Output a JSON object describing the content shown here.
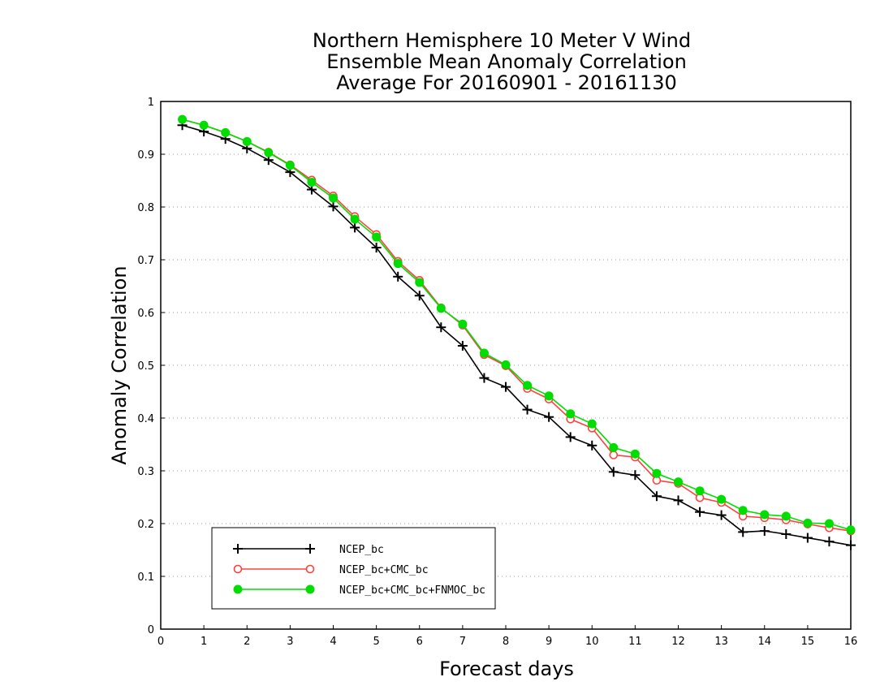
{
  "chart_data": {
    "type": "line",
    "title_lines": [
      "Northern Hemisphere 10 Meter V Wind",
      "Ensemble Mean Anomaly Correlation",
      "Average For 20160901 - 20161130"
    ],
    "xlabel": "Forecast days",
    "ylabel": "Anomaly Correlation",
    "xlim": [
      0,
      16
    ],
    "ylim": [
      0,
      1
    ],
    "xticks": [
      "0",
      "1",
      "2",
      "3",
      "4",
      "5",
      "6",
      "7",
      "8",
      "9",
      "10",
      "11",
      "12",
      "13",
      "14",
      "15",
      "16"
    ],
    "yticks": [
      "0",
      "0.1",
      "0.2",
      "0.3",
      "0.4",
      "0.5",
      "0.6",
      "0.7",
      "0.8",
      "0.9",
      "1"
    ],
    "grid": "horizontal dotted",
    "legend_position": "bottom-left",
    "x": [
      0.5,
      1,
      1.5,
      2,
      2.5,
      3,
      3.5,
      4,
      4.5,
      5,
      5.5,
      6,
      6.5,
      7,
      7.5,
      8,
      8.5,
      9,
      9.5,
      10,
      10.5,
      11,
      11.5,
      12,
      12.5,
      13,
      13.5,
      14,
      14.5,
      15,
      15.5,
      16
    ],
    "series": [
      {
        "name": "NCEP_bc",
        "color": "#000000",
        "marker": "plus",
        "values": [
          0.955,
          0.943,
          0.929,
          0.911,
          0.889,
          0.866,
          0.833,
          0.801,
          0.761,
          0.723,
          0.668,
          0.632,
          0.572,
          0.537,
          0.476,
          0.459,
          0.416,
          0.402,
          0.364,
          0.348,
          0.298,
          0.292,
          0.252,
          0.244,
          0.222,
          0.216,
          0.184,
          0.186,
          0.18,
          0.173,
          0.166,
          0.159
        ]
      },
      {
        "name": "NCEP_bc+CMC_bc",
        "color": "#ff4040",
        "marker": "open-circle",
        "values": [
          0.966,
          0.955,
          0.941,
          0.924,
          0.904,
          0.88,
          0.851,
          0.821,
          0.782,
          0.748,
          0.697,
          0.661,
          0.609,
          0.576,
          0.52,
          0.499,
          0.456,
          0.436,
          0.398,
          0.381,
          0.33,
          0.326,
          0.282,
          0.276,
          0.249,
          0.24,
          0.214,
          0.211,
          0.207,
          0.199,
          0.192,
          0.186
        ]
      },
      {
        "name": "NCEP_bc+CMC_bc+FNMOC_bc",
        "color": "#00dd00",
        "marker": "filled-circle",
        "values": [
          0.966,
          0.955,
          0.941,
          0.924,
          0.903,
          0.879,
          0.847,
          0.817,
          0.777,
          0.743,
          0.693,
          0.657,
          0.608,
          0.578,
          0.523,
          0.501,
          0.462,
          0.442,
          0.408,
          0.389,
          0.344,
          0.332,
          0.295,
          0.279,
          0.262,
          0.246,
          0.225,
          0.217,
          0.214,
          0.201,
          0.2,
          0.188
        ]
      }
    ]
  }
}
